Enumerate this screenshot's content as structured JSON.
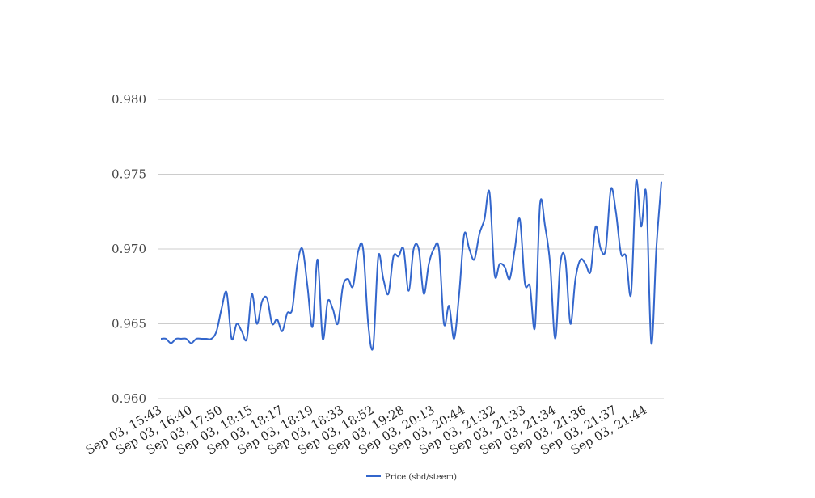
{
  "chart_data": {
    "type": "line",
    "title": "",
    "xlabel": "",
    "ylabel": "",
    "ylim": [
      0.96,
      0.98
    ],
    "yticks": [
      0.96,
      0.965,
      0.97,
      0.975,
      0.98
    ],
    "ytick_labels": [
      "0.960",
      "0.965",
      "0.970",
      "0.975",
      "0.980"
    ],
    "x_tick_labels": [
      "Sep 03, 15:43",
      "Sep 03, 16:40",
      "Sep 03, 17:50",
      "Sep 03, 18:15",
      "Sep 03, 18:17",
      "Sep 03, 18:19",
      "Sep 03, 18:33",
      "Sep 03, 18:52",
      "Sep 03, 19:28",
      "Sep 03, 20:13",
      "Sep 03, 20:44",
      "Sep 03, 21:32",
      "Sep 03, 21:33",
      "Sep 03, 21:34",
      "Sep 03, 21:36",
      "Sep 03, 21:37",
      "Sep 03, 21:44"
    ],
    "grid": true,
    "legend_position": "bottom",
    "series": [
      {
        "name": "Price (sbd/steem)",
        "color": "#3366cc",
        "values": [
          0.964,
          0.964,
          0.9637,
          0.964,
          0.964,
          0.964,
          0.9637,
          0.964,
          0.964,
          0.964,
          0.964,
          0.9645,
          0.966,
          0.9671,
          0.964,
          0.965,
          0.9645,
          0.964,
          0.967,
          0.965,
          0.9665,
          0.9667,
          0.965,
          0.9653,
          0.9645,
          0.9657,
          0.966,
          0.969,
          0.97,
          0.9675,
          0.9648,
          0.9693,
          0.964,
          0.9665,
          0.966,
          0.965,
          0.9675,
          0.968,
          0.9675,
          0.9698,
          0.97,
          0.965,
          0.9635,
          0.9695,
          0.968,
          0.967,
          0.9695,
          0.9695,
          0.97,
          0.9672,
          0.97,
          0.97,
          0.967,
          0.969,
          0.97,
          0.97,
          0.965,
          0.9662,
          0.964,
          0.967,
          0.971,
          0.97,
          0.9693,
          0.971,
          0.972,
          0.9738,
          0.9683,
          0.969,
          0.9688,
          0.968,
          0.97,
          0.972,
          0.9677,
          0.9675,
          0.9648,
          0.973,
          0.9715,
          0.969,
          0.964,
          0.969,
          0.9693,
          0.965,
          0.968,
          0.9693,
          0.969,
          0.9685,
          0.9715,
          0.97,
          0.97,
          0.974,
          0.9725,
          0.9697,
          0.9695,
          0.967,
          0.9745,
          0.9715,
          0.9737,
          0.9637,
          0.97,
          0.9745
        ]
      }
    ]
  }
}
